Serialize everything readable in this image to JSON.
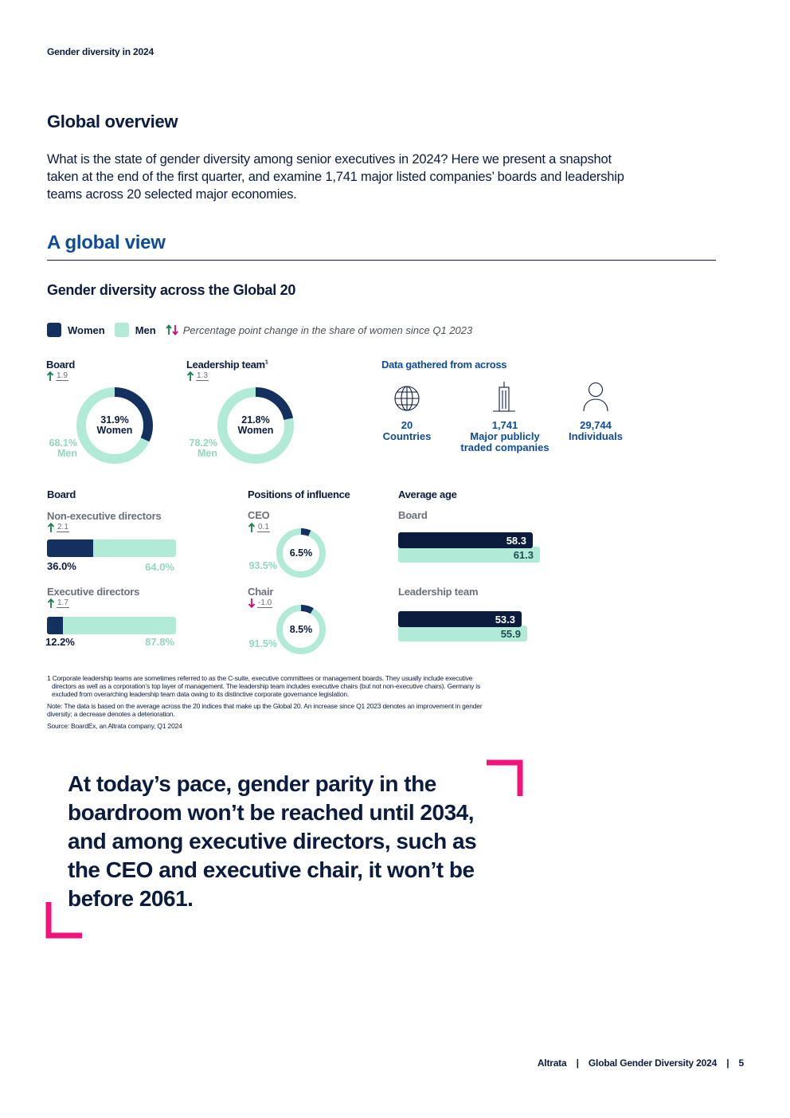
{
  "running_header": "Gender diversity in 2024",
  "overview": {
    "title": "Global overview",
    "intro_lines": [
      "What is the state of gender diversity among senior executives in 2024? Here we present a snapshot",
      "taken at the end of the first quarter, and examine 1,741 major listed companies’ boards and leadership",
      "teams across 20 selected major economies."
    ]
  },
  "section": {
    "title": "A global view",
    "chart_title": "Gender diversity across the Global 20"
  },
  "legend": {
    "women": "Women",
    "men": "Men",
    "change_note": "Percentage point change in the share of women since Q1 2023"
  },
  "colors": {
    "women": "#13305f",
    "men": "#b1ebd7",
    "increase": "#14804a",
    "decrease": "#e5006d",
    "accent_blue": "#0d4b9b",
    "quote_bracket": "#f0137c"
  },
  "chart_data": [
    {
      "type": "pie",
      "title": "Board",
      "change": {
        "direction": "up",
        "value": "1.9"
      },
      "slices": [
        {
          "name": "Women",
          "value": 31.9,
          "label": "31.9%",
          "caption": "Women"
        },
        {
          "name": "Men",
          "value": 68.1,
          "label": "68.1%",
          "caption": "Men"
        }
      ]
    },
    {
      "type": "pie",
      "title": "Leadership team",
      "title_note": "1",
      "change": {
        "direction": "up",
        "value": "1.3"
      },
      "slices": [
        {
          "name": "Women",
          "value": 21.8,
          "label": "21.8%",
          "caption": "Women"
        },
        {
          "name": "Men",
          "value": 78.2,
          "label": "78.2%",
          "caption": "Men"
        }
      ]
    },
    {
      "type": "bar",
      "group_title": "Board",
      "rows": [
        {
          "label": "Non-executive directors",
          "change": {
            "direction": "up",
            "value": "2.1"
          },
          "women": 36.0,
          "men": 64.0,
          "women_label": "36.0%",
          "men_label": "64.0%"
        },
        {
          "label": "Executive directors",
          "change": {
            "direction": "up",
            "value": "1.7"
          },
          "women": 12.2,
          "men": 87.8,
          "women_label": "12.2%",
          "men_label": "87.8%"
        }
      ]
    },
    {
      "type": "pie",
      "group_title": "Positions of influence",
      "items": [
        {
          "label": "CEO",
          "change": {
            "direction": "up",
            "value": "0.1"
          },
          "women": 6.5,
          "men": 93.5,
          "women_label": "6.5%",
          "men_label": "93.5%"
        },
        {
          "label": "Chair",
          "change": {
            "direction": "down",
            "value": "-1.0"
          },
          "women": 8.5,
          "men": 91.5,
          "women_label": "8.5%",
          "men_label": "91.5%"
        }
      ]
    },
    {
      "type": "bar",
      "group_title": "Average age",
      "xlim": [
        0,
        61.3
      ],
      "rows": [
        {
          "label": "Board",
          "women": 58.3,
          "men": 61.3,
          "women_label": "58.3",
          "men_label": "61.3"
        },
        {
          "label": "Leadership team",
          "women": 53.3,
          "men": 55.9,
          "women_label": "53.3",
          "men_label": "55.9"
        }
      ]
    }
  ],
  "data_gathered": {
    "title": "Data gathered from across",
    "stats": [
      {
        "icon": "globe-icon",
        "value": "20",
        "label_lines": [
          "Countries"
        ]
      },
      {
        "icon": "building-icon",
        "value": "1,741",
        "label_lines": [
          "Major publicly",
          "traded companies"
        ]
      },
      {
        "icon": "person-icon",
        "value": "29,744",
        "label_lines": [
          "Individuals"
        ]
      }
    ]
  },
  "footnotes": {
    "note1_lines": [
      "1 Corporate leadership teams are sometimes referred to as the C-suite, executive committees or management boards. They usually include executive",
      "directors as well as a corporation’s top layer of management. The leadership team includes executive chairs (but not non-executive chairs). Germany is",
      "excluded from overarching leadership team data owing to its distinctive corporate governance legislation."
    ],
    "note2_lines": [
      "Note: The data is based on the average across the 20 indices that make up the Global 20. An increase since Q1 2023 denotes an improvement in gender",
      "diversity; a decrease denotes a deterioration."
    ],
    "source": "Source: BoardEx, an Altrata company, Q1 2024"
  },
  "quote_lines": [
    "At today’s pace, gender parity in the",
    "boardroom won’t be reached until 2034,",
    "and among executive directors, such as",
    "the CEO and executive chair, it won’t be",
    "before 2061."
  ],
  "page_footer": {
    "brand": "Altrata",
    "publication": "Global Gender Diversity 2024",
    "page_number": "5",
    "separator": "|"
  }
}
